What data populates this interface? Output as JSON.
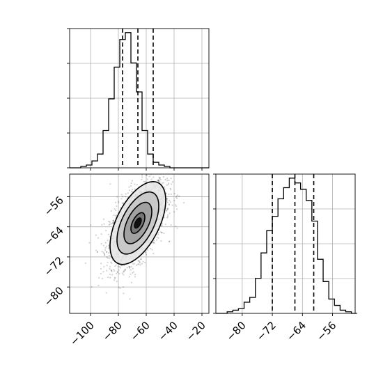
{
  "chart_data": [
    {
      "name": "histogram-x",
      "type": "bar",
      "grid": true,
      "xlim": [
        -115,
        -15
      ],
      "bin_edges": [
        -115,
        -111,
        -107,
        -103,
        -99,
        -95,
        -91,
        -87,
        -83,
        -79,
        -75,
        -71,
        -67,
        -63,
        -59,
        -55,
        -51,
        -47,
        -43,
        -39,
        -35,
        -31,
        -27,
        -23,
        -19,
        -15
      ],
      "counts": [
        0,
        0,
        1,
        2,
        5,
        10,
        27,
        50,
        73,
        93,
        98,
        76,
        55,
        27,
        10,
        4,
        2,
        1,
        0,
        0,
        0,
        0,
        0,
        0,
        0
      ],
      "quantile_lines": [
        -77,
        -66,
        -55
      ]
    },
    {
      "name": "contour-xy",
      "type": "scatter",
      "grid": true,
      "xlim": [
        -115,
        -15
      ],
      "ylim": [
        -87,
        -50
      ],
      "x_ticks": [
        -100,
        -80,
        -60,
        -40,
        -20
      ],
      "y_ticks": [
        -56,
        -64,
        -72,
        -80
      ],
      "x_tick_labels": [
        "−100",
        "−80",
        "−60",
        "−40",
        "−20"
      ],
      "y_tick_labels": [
        "−56",
        "−64",
        "−72",
        "−80"
      ],
      "mean": [
        -66,
        -63
      ],
      "std": [
        10,
        5.5
      ],
      "correlation": 0.55,
      "n_points": 2200,
      "point_color": "#000000",
      "contour_levels": [
        0.5,
        1.0,
        1.5,
        2.0
      ],
      "contour_fill_colors": [
        "#6e6e6e",
        "#9a9a9a",
        "#c4c4c4",
        "#e6e6e6"
      ]
    },
    {
      "name": "histogram-y",
      "type": "bar",
      "grid": true,
      "xlim": [
        -87,
        -50
      ],
      "x_ticks": [
        -80,
        -72,
        -64,
        -56
      ],
      "x_tick_labels": [
        "−80",
        "−72",
        "−64",
        "−56"
      ],
      "bin_edges": [
        -87,
        -85.5,
        -84,
        -82.5,
        -81,
        -79.5,
        -78,
        -76.5,
        -75,
        -73.5,
        -72,
        -70.5,
        -69,
        -67.5,
        -66,
        -64.5,
        -63,
        -61.5,
        -60,
        -58.5,
        -57,
        -55.5,
        -54,
        -52.5,
        -51,
        -49.5
      ],
      "counts": [
        0,
        0,
        1,
        2,
        3,
        7,
        10,
        22,
        38,
        52,
        61,
        72,
        79,
        85,
        82,
        78,
        71,
        58,
        34,
        20,
        9,
        5,
        2,
        1,
        0
      ],
      "quantile_lines": [
        -72,
        -66,
        -61
      ]
    }
  ]
}
